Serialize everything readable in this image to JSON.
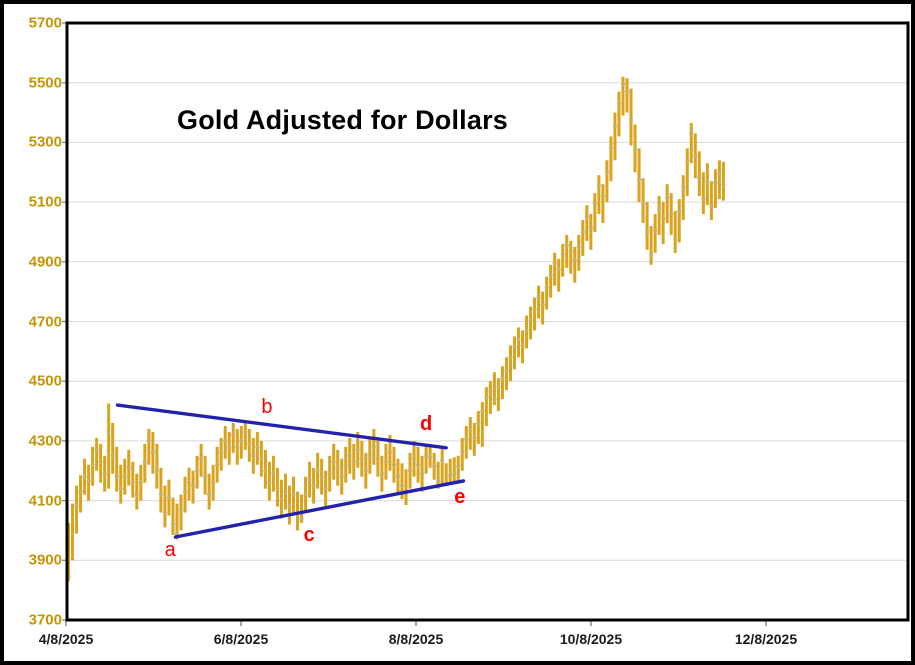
{
  "chart_data": {
    "type": "bar",
    "subtype": "high-low-close-bars",
    "title": "Gold Adjusted for Dollars",
    "xlabel": "",
    "ylabel": "",
    "ylim": [
      3700,
      5700
    ],
    "y_ticks": [
      3700,
      3900,
      4100,
      4300,
      4500,
      4700,
      4900,
      5100,
      5300,
      5500,
      5700
    ],
    "x_tick_labels": [
      "4/8/2025",
      "6/8/2025",
      "8/8/2025",
      "10/8/2025",
      "12/8/2025"
    ],
    "grid": true,
    "legend": false,
    "bars_format": "[low, high, close] per trading day, 4/8/2025 through ~11/20/2025",
    "bars": [
      [
        3830,
        4025,
        3845
      ],
      [
        3900,
        4090,
        3990
      ],
      [
        3990,
        4150,
        4080
      ],
      [
        4060,
        4185,
        4130
      ],
      [
        4120,
        4240,
        4180
      ],
      [
        4100,
        4220,
        4165
      ],
      [
        4150,
        4280,
        4220
      ],
      [
        4200,
        4310,
        4270
      ],
      [
        4160,
        4290,
        4230
      ],
      [
        4130,
        4250,
        4190
      ],
      [
        4140,
        4425,
        4330
      ],
      [
        4190,
        4360,
        4250
      ],
      [
        4130,
        4280,
        4180
      ],
      [
        4090,
        4220,
        4140
      ],
      [
        4120,
        4240,
        4180
      ],
      [
        4150,
        4270,
        4210
      ],
      [
        4110,
        4230,
        4160
      ],
      [
        4070,
        4190,
        4120
      ],
      [
        4100,
        4220,
        4160
      ],
      [
        4160,
        4290,
        4230
      ],
      [
        4220,
        4340,
        4300
      ],
      [
        4190,
        4330,
        4260
      ],
      [
        4140,
        4290,
        4200
      ],
      [
        4060,
        4210,
        4120
      ],
      [
        4010,
        4150,
        4060
      ],
      [
        4050,
        4170,
        4110
      ],
      [
        3985,
        4110,
        4020
      ],
      [
        3970,
        4090,
        3990
      ],
      [
        4000,
        4120,
        4070
      ],
      [
        4060,
        4180,
        4130
      ],
      [
        4100,
        4210,
        4160
      ],
      [
        4090,
        4200,
        4150
      ],
      [
        4140,
        4250,
        4200
      ],
      [
        4180,
        4290,
        4240
      ],
      [
        4120,
        4250,
        4180
      ],
      [
        4070,
        4190,
        4120
      ],
      [
        4100,
        4220,
        4160
      ],
      [
        4160,
        4280,
        4220
      ],
      [
        4200,
        4310,
        4260
      ],
      [
        4240,
        4350,
        4300
      ],
      [
        4220,
        4330,
        4280
      ],
      [
        4260,
        4360,
        4320
      ],
      [
        4220,
        4340,
        4280
      ],
      [
        4240,
        4350,
        4300
      ],
      [
        4270,
        4360,
        4330
      ],
      [
        4230,
        4340,
        4290
      ],
      [
        4190,
        4310,
        4250
      ],
      [
        4220,
        4330,
        4280
      ],
      [
        4180,
        4300,
        4240
      ],
      [
        4140,
        4270,
        4200
      ],
      [
        4100,
        4230,
        4160
      ],
      [
        4130,
        4250,
        4190
      ],
      [
        4080,
        4210,
        4140
      ],
      [
        4040,
        4170,
        4100
      ],
      [
        4070,
        4190,
        4130
      ],
      [
        4020,
        4150,
        4080
      ],
      [
        4060,
        4180,
        4120
      ],
      [
        4000,
        4130,
        4060
      ],
      [
        4025,
        4120,
        4040
      ],
      [
        4060,
        4180,
        4120
      ],
      [
        4110,
        4230,
        4170
      ],
      [
        4090,
        4210,
        4150
      ],
      [
        4140,
        4260,
        4200
      ],
      [
        4120,
        4240,
        4180
      ],
      [
        4080,
        4200,
        4140
      ],
      [
        4130,
        4250,
        4190
      ],
      [
        4170,
        4290,
        4230
      ],
      [
        4150,
        4270,
        4210
      ],
      [
        4120,
        4240,
        4180
      ],
      [
        4160,
        4280,
        4220
      ],
      [
        4190,
        4310,
        4250
      ],
      [
        4170,
        4290,
        4230
      ],
      [
        4210,
        4330,
        4270
      ],
      [
        4180,
        4300,
        4240
      ],
      [
        4140,
        4260,
        4200
      ],
      [
        4190,
        4310,
        4250
      ],
      [
        4220,
        4340,
        4280
      ],
      [
        4180,
        4300,
        4240
      ],
      [
        4130,
        4250,
        4190
      ],
      [
        4170,
        4290,
        4230
      ],
      [
        4200,
        4320,
        4260
      ],
      [
        4160,
        4280,
        4220
      ],
      [
        4120,
        4240,
        4180
      ],
      [
        4105,
        4225,
        4150
      ],
      [
        4085,
        4205,
        4130
      ],
      [
        4140,
        4260,
        4200
      ],
      [
        4180,
        4300,
        4240
      ],
      [
        4160,
        4280,
        4220
      ],
      [
        4130,
        4250,
        4190
      ],
      [
        4190,
        4285,
        4250
      ],
      [
        4210,
        4280,
        4245
      ],
      [
        4170,
        4260,
        4215
      ],
      [
        4140,
        4230,
        4165
      ],
      [
        4150,
        4275,
        4235
      ],
      [
        4150,
        4225,
        4160
      ],
      [
        4155,
        4240,
        4185
      ],
      [
        4158,
        4245,
        4190
      ],
      [
        4165,
        4250,
        4215
      ],
      [
        4200,
        4310,
        4265
      ],
      [
        4240,
        4350,
        4305
      ],
      [
        4270,
        4380,
        4335
      ],
      [
        4250,
        4360,
        4310
      ],
      [
        4290,
        4400,
        4360
      ],
      [
        4280,
        4430,
        4400
      ],
      [
        4350,
        4480,
        4445
      ],
      [
        4390,
        4500,
        4465
      ],
      [
        4420,
        4530,
        4440
      ],
      [
        4400,
        4510,
        4480
      ],
      [
        4440,
        4550,
        4510
      ],
      [
        4470,
        4580,
        4535
      ],
      [
        4500,
        4620,
        4580
      ],
      [
        4540,
        4650,
        4615
      ],
      [
        4580,
        4680,
        4640
      ],
      [
        4560,
        4670,
        4620
      ],
      [
        4610,
        4720,
        4670
      ],
      [
        4640,
        4750,
        4705
      ],
      [
        4670,
        4780,
        4740
      ],
      [
        4710,
        4820,
        4780
      ],
      [
        4690,
        4800,
        4755
      ],
      [
        4740,
        4850,
        4815
      ],
      [
        4780,
        4890,
        4855
      ],
      [
        4820,
        4930,
        4895
      ],
      [
        4800,
        4910,
        4875
      ],
      [
        4850,
        4960,
        4925
      ],
      [
        4880,
        4990,
        4955
      ],
      [
        4860,
        4970,
        4935
      ],
      [
        4830,
        4950,
        4905
      ],
      [
        4870,
        4990,
        4950
      ],
      [
        4920,
        5040,
        5000
      ],
      [
        4970,
        5090,
        5050
      ],
      [
        4940,
        5060,
        5015
      ],
      [
        5000,
        5130,
        5095
      ],
      [
        5060,
        5190,
        5155
      ],
      [
        5030,
        5160,
        5120
      ],
      [
        5100,
        5240,
        5200
      ],
      [
        5170,
        5320,
        5280
      ],
      [
        5240,
        5400,
        5355
      ],
      [
        5320,
        5470,
        5430
      ],
      [
        5390,
        5520,
        5495
      ],
      [
        5400,
        5515,
        5470
      ],
      [
        5290,
        5480,
        5375
      ],
      [
        5200,
        5360,
        5275
      ],
      [
        5100,
        5280,
        5175
      ],
      [
        5030,
        5180,
        5095
      ],
      [
        4940,
        5100,
        5000
      ],
      [
        4890,
        5020,
        4925
      ],
      [
        4930,
        5060,
        5005
      ],
      [
        4990,
        5120,
        5080
      ],
      [
        4960,
        5100,
        5045
      ],
      [
        5030,
        5160,
        5115
      ],
      [
        4990,
        5130,
        5060
      ],
      [
        4930,
        5070,
        4975
      ],
      [
        4965,
        5110,
        5070
      ],
      [
        5040,
        5190,
        5150
      ],
      [
        5120,
        5280,
        5240
      ],
      [
        5230,
        5365,
        5330
      ],
      [
        5180,
        5330,
        5255
      ],
      [
        5120,
        5270,
        5180
      ],
      [
        5060,
        5200,
        5110
      ],
      [
        5090,
        5230,
        5170
      ],
      [
        5040,
        5170,
        5085
      ],
      [
        5080,
        5210,
        5165
      ],
      [
        5110,
        5240,
        5195
      ],
      [
        5105,
        5235,
        5160
      ]
    ],
    "trendlines": [
      {
        "name": "upper-trendline",
        "from": {
          "day": 12.2,
          "value": 4420
        },
        "to": {
          "day": 94.0,
          "value": 4277
        }
      },
      {
        "name": "lower-trendline",
        "from": {
          "day": 26.6,
          "value": 3978
        },
        "to": {
          "day": 98.3,
          "value": 4166
        }
      }
    ],
    "annotations": [
      {
        "text": "a",
        "day": 25.3,
        "value": 3935,
        "bold": false
      },
      {
        "text": "b",
        "day": 49.4,
        "value": 4413,
        "bold": false
      },
      {
        "text": "c",
        "day": 59.9,
        "value": 3984,
        "bold": true
      },
      {
        "text": "d",
        "day": 89.0,
        "value": 4356,
        "bold": true
      },
      {
        "text": "e",
        "day": 97.4,
        "value": 4113,
        "bold": true
      }
    ],
    "colors": {
      "bar": "#D9A31D",
      "close_dot": "#C3B168",
      "grid": "#D9D9D9",
      "trendline": "#2222AD",
      "annotation": "#FF0000",
      "y_label": "#C49506",
      "x_label": "#1A1A1A",
      "title": "#000000",
      "border": "#000000",
      "background": "#FFFFFF"
    }
  }
}
